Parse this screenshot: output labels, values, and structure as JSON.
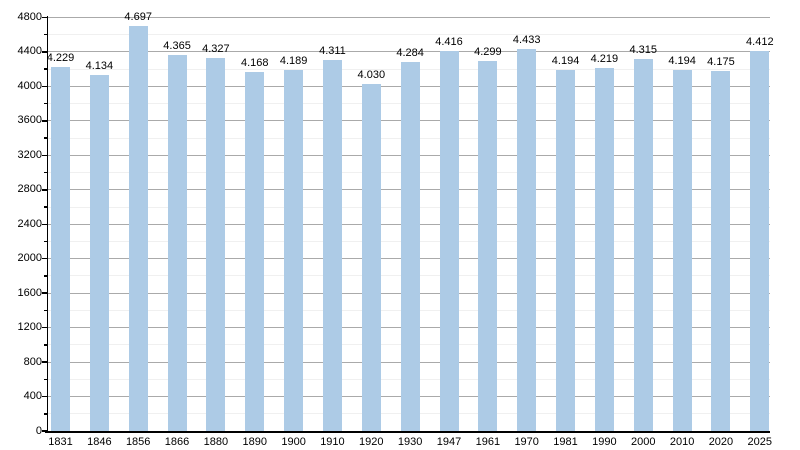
{
  "chart_data": {
    "type": "bar",
    "title": "",
    "xlabel": "",
    "ylabel": "",
    "categories": [
      "1831",
      "1846",
      "1856",
      "1866",
      "1880",
      "1890",
      "1900",
      "1910",
      "1920",
      "1930",
      "1947",
      "1961",
      "1970",
      "1981",
      "1990",
      "2000",
      "2010",
      "2020",
      "2025"
    ],
    "values": [
      4229,
      4134,
      4697,
      4365,
      4327,
      4168,
      4189,
      4311,
      4030,
      4284,
      4416,
      4299,
      4433,
      4194,
      4219,
      4315,
      4194,
      4175,
      4412
    ],
    "value_labels": [
      "4.229",
      "4.134",
      "4.697",
      "4.365",
      "4.327",
      "4.168",
      "4.189",
      "4.311",
      "4.030",
      "4.284",
      "4.416",
      "4.299",
      "4.433",
      "4.194",
      "4.219",
      "4.315",
      "4.194",
      "4.175",
      "4.412"
    ],
    "ylim": [
      0,
      4800
    ],
    "y_major_step": 400,
    "y_minor_step": 200,
    "y_tick_labels": [
      "0",
      "400",
      "800",
      "1200",
      "1600",
      "2000",
      "2400",
      "2800",
      "3200",
      "3600",
      "4000",
      "4400",
      "4800"
    ],
    "grid": true,
    "legend_position": "none",
    "colors": {
      "bar_fill": "#adcbe6",
      "axis": "#000000",
      "major_grid": "#aaaaaa",
      "minor_grid": "#f0f0f0",
      "label_text": "#000000",
      "background": "#ffffff"
    }
  }
}
